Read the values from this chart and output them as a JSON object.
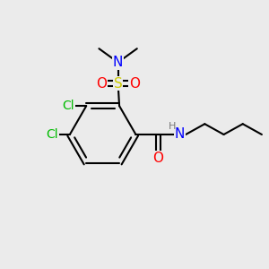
{
  "background_color": "#ebebeb",
  "atom_colors": {
    "C": "#000000",
    "N": "#0000ff",
    "O": "#ff0000",
    "S": "#cccc00",
    "Cl": "#00bb00",
    "H": "#888888"
  },
  "bond_color": "#000000",
  "bond_width": 1.5
}
